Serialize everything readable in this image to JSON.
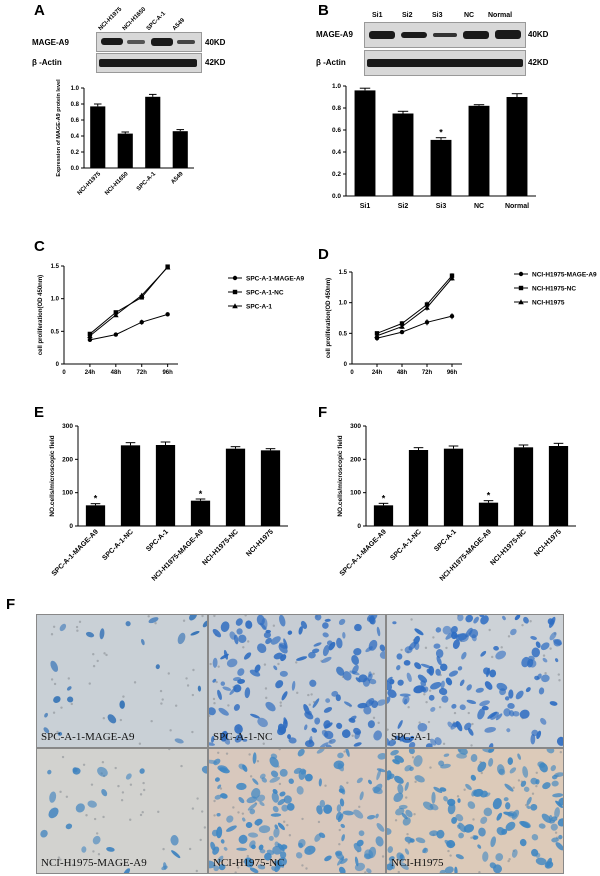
{
  "panels": {
    "A": "A",
    "B": "B",
    "C": "C",
    "D": "D",
    "E": "E",
    "F_chart": "F",
    "F_images": "F"
  },
  "blotA": {
    "lanes": [
      "NCI-H1975",
      "NCI-H1650",
      "SPC-A-1",
      "A549"
    ],
    "protein": "MAGE-A9",
    "control": "β -Actin",
    "size_protein": "40KD",
    "size_control": "42KD"
  },
  "blotB": {
    "lanes": [
      "Si1",
      "Si2",
      "Si3",
      "NC",
      "Normal"
    ],
    "protein": "MAGE-A9",
    "control": "β -Actin",
    "size_protein": "40KD",
    "size_control": "42KD"
  },
  "chart_data": [
    {
      "id": "A",
      "type": "bar",
      "categories": [
        "NCI-H1975",
        "NCI-H1650",
        "SPC-A-1",
        "A549"
      ],
      "values": [
        0.77,
        0.43,
        0.89,
        0.46
      ],
      "errors": [
        0.03,
        0.02,
        0.03,
        0.02
      ],
      "ylabel": "Expression of MAGE-A9 protein level",
      "ylim": [
        0,
        1.0
      ],
      "yticks": [
        0.0,
        0.2,
        0.4,
        0.6,
        0.8,
        1.0
      ],
      "ytick_labels": [
        "0.0",
        "0.2",
        "0.4",
        "0.6",
        "0.8",
        "1.0"
      ],
      "significance": []
    },
    {
      "id": "B",
      "type": "bar",
      "categories": [
        "Si1",
        "Si2",
        "Si3",
        "NC",
        "Normal"
      ],
      "values": [
        0.96,
        0.75,
        0.51,
        0.82,
        0.9
      ],
      "errors": [
        0.02,
        0.02,
        0.02,
        0.01,
        0.03
      ],
      "ylabel": "",
      "ylim": [
        0,
        1.0
      ],
      "yticks": [
        0.0,
        0.2,
        0.4,
        0.6,
        0.8,
        1.0
      ],
      "ytick_labels": [
        "0.0",
        "0.2",
        "0.4",
        "0.6",
        "0.8",
        "1.0"
      ],
      "significance": [
        "",
        "",
        "*",
        "",
        ""
      ]
    },
    {
      "id": "C",
      "type": "line",
      "x": [
        "24h",
        "48h",
        "72h",
        "96h"
      ],
      "x_axis_zero": "0",
      "series": [
        {
          "name": "SPC-A-1-MAGE-A9",
          "marker": "circle",
          "values": [
            0.37,
            0.45,
            0.64,
            0.76
          ],
          "errors": [
            0.02,
            0.01,
            0.04,
            0.03
          ]
        },
        {
          "name": "SPC-A-1-NC",
          "marker": "square",
          "values": [
            0.46,
            0.79,
            1.02,
            1.49
          ],
          "errors": [
            0.02,
            0.02,
            0.03,
            0.02
          ]
        },
        {
          "name": "SPC-A-1",
          "marker": "triangle",
          "values": [
            0.43,
            0.75,
            1.05,
            1.48
          ],
          "errors": [
            0.02,
            0.02,
            0.03,
            0.02
          ]
        }
      ],
      "ylabel": "cell proliferation(OD 450nm)",
      "ylim": [
        0,
        1.5
      ],
      "yticks": [
        0,
        0.5,
        1.0,
        1.5
      ],
      "ytick_labels": [
        "0",
        "0.5",
        "1.0",
        "1.5"
      ]
    },
    {
      "id": "D",
      "type": "line",
      "x": [
        "24h",
        "48h",
        "72h",
        "96h"
      ],
      "x_axis_zero": "0",
      "series": [
        {
          "name": "NCI-H1975-MAGE-A9",
          "marker": "circle",
          "values": [
            0.42,
            0.52,
            0.68,
            0.78
          ],
          "errors": [
            0.04,
            0.03,
            0.05,
            0.05
          ]
        },
        {
          "name": "NCI-H1975-NC",
          "marker": "square",
          "values": [
            0.5,
            0.66,
            0.97,
            1.44
          ],
          "errors": [
            0.03,
            0.04,
            0.05,
            0.04
          ]
        },
        {
          "name": "NCI-H1975",
          "marker": "triangle",
          "values": [
            0.46,
            0.61,
            0.92,
            1.4
          ],
          "errors": [
            0.03,
            0.04,
            0.05,
            0.04
          ]
        }
      ],
      "ylabel": "cell proliferation(OD 450nm)",
      "ylim": [
        0,
        1.5
      ],
      "yticks": [
        0,
        0.5,
        1.0,
        1.5
      ],
      "ytick_labels": [
        "0",
        "0.5",
        "1.0",
        "1.5"
      ]
    },
    {
      "id": "E",
      "type": "bar",
      "categories": [
        "SPC-A-1-MAGE-A9",
        "SPC-A-1-NC",
        "SPC-A-1",
        "NCI-H1975-MAGE-A9",
        "NCI-H1975-NC",
        "NCI-H1975"
      ],
      "values": [
        62,
        242,
        243,
        76,
        232,
        227
      ],
      "errors": [
        5,
        8,
        9,
        5,
        6,
        5
      ],
      "ylabel": "NO.cells/microscopic field",
      "ylim": [
        0,
        300
      ],
      "yticks": [
        0,
        100,
        200,
        300
      ],
      "ytick_labels": [
        "0",
        "100",
        "200",
        "300"
      ],
      "significance": [
        "*",
        "",
        "",
        "*",
        "",
        ""
      ]
    },
    {
      "id": "F",
      "type": "bar",
      "categories": [
        "SPC-A-1-MAGE-A9",
        "SPC-A-1-NC",
        "SPC-A-1",
        "NCI-H1975-MAGE-A9",
        "NCI-H1975-NC",
        "NCI-H1975"
      ],
      "values": [
        62,
        228,
        232,
        70,
        236,
        240
      ],
      "errors": [
        6,
        7,
        8,
        6,
        7,
        8
      ],
      "ylabel": "NO.cells/microscopic field",
      "ylim": [
        0,
        300
      ],
      "yticks": [
        0,
        100,
        200,
        300
      ],
      "ytick_labels": [
        "0",
        "100",
        "200",
        "300"
      ],
      "significance": [
        "*",
        "",
        "",
        "*",
        "",
        ""
      ]
    }
  ],
  "micrographs": [
    {
      "label": "SPC-A-1-MAGE-A9",
      "density": "sparse",
      "bg": "#c9d0d6",
      "cell": "#2f6fb5"
    },
    {
      "label": "SPC-A-1-NC",
      "density": "dense",
      "bg": "#c7cdd4",
      "cell": "#2e6cc0"
    },
    {
      "label": "SPC-A-1",
      "density": "dense",
      "bg": "#cdd2d7",
      "cell": "#2d6cc2"
    },
    {
      "label": "NCI-H1975-MAGE-A9",
      "density": "sparse",
      "bg": "#d2d2cf",
      "cell": "#3f83bf"
    },
    {
      "label": "NCI-H1975-NC",
      "density": "dense",
      "bg": "#d8c8bd",
      "cell": "#3d86c4"
    },
    {
      "label": "NCI-H1975",
      "density": "dense",
      "bg": "#dccab9",
      "cell": "#3b85c2"
    }
  ]
}
